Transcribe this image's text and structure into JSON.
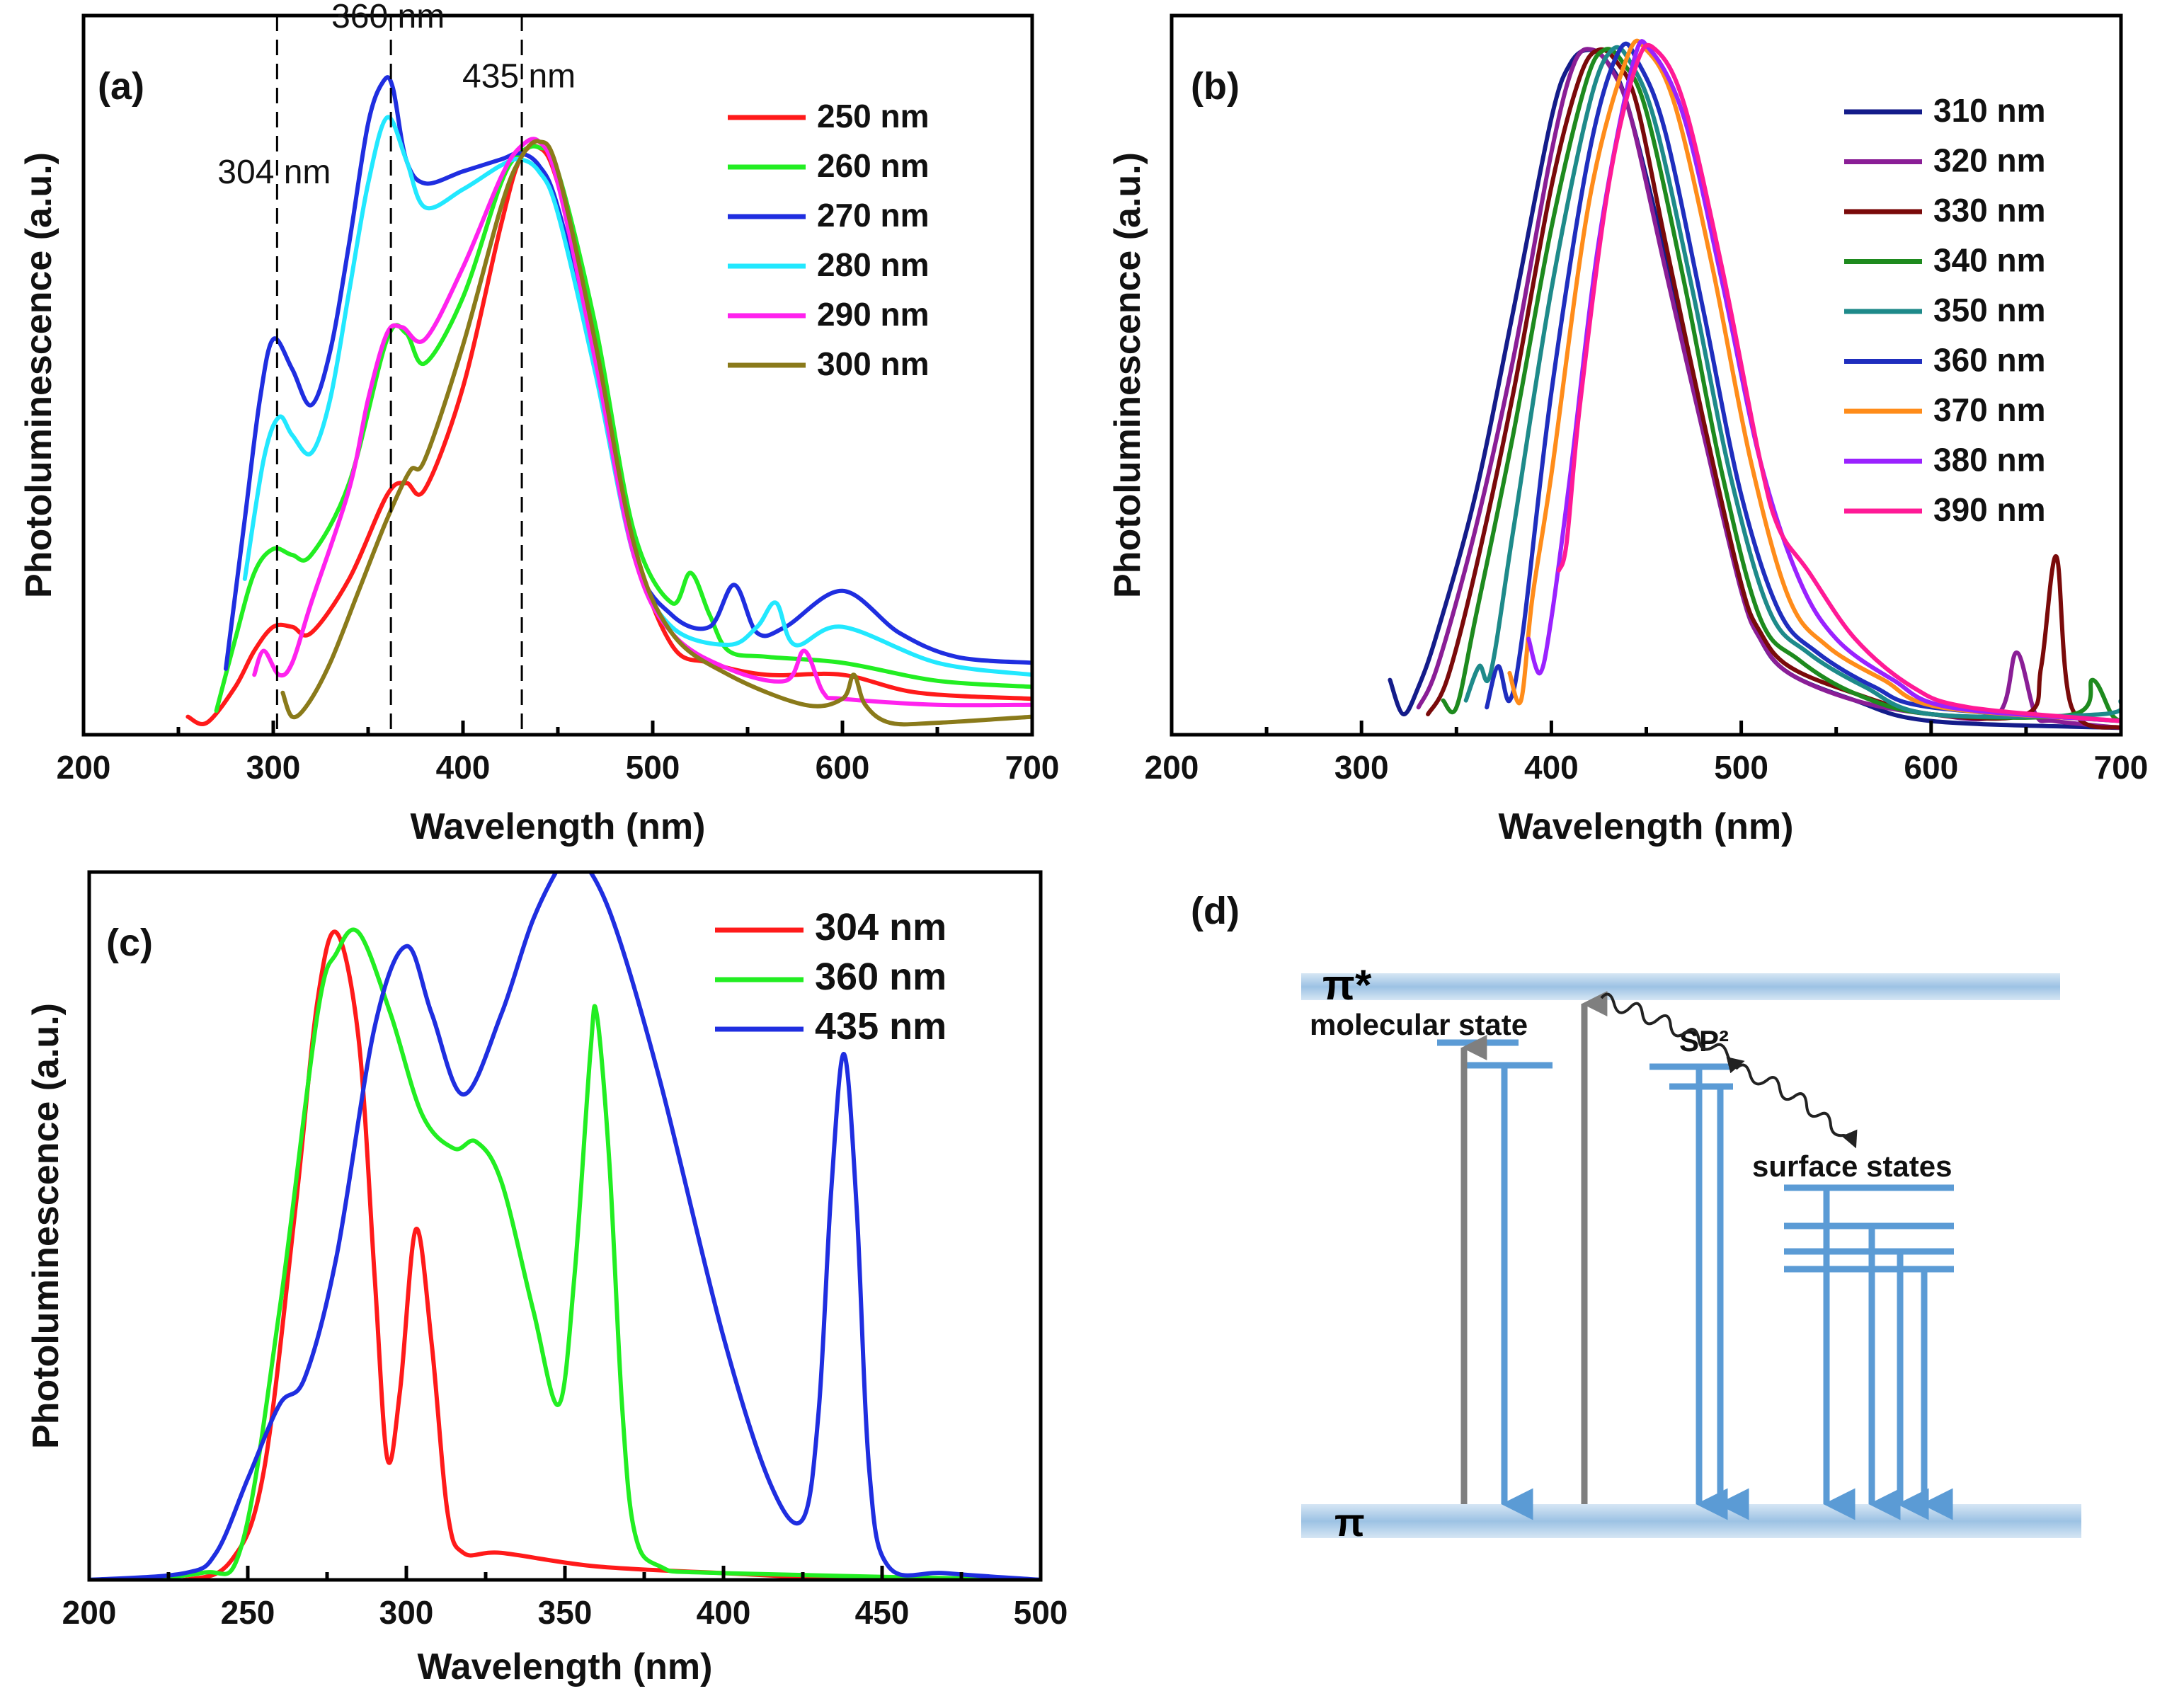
{
  "chart_data": [
    {
      "id": "a",
      "type": "line",
      "panel_label": "(a)",
      "xlabel": "Wavelength (nm)",
      "ylabel": "Photoluminescence (a.u.)",
      "xlim": [
        200,
        700
      ],
      "ylim": [
        0,
        1.2
      ],
      "xticks": [
        200,
        300,
        400,
        500,
        600,
        700
      ],
      "annotations": [
        {
          "text": "304 nm",
          "x": 302,
          "y": 0.92
        },
        {
          "text": "360 nm",
          "x": 362,
          "y": 1.18
        },
        {
          "text": "435 nm",
          "x": 431,
          "y": 1.08
        }
      ],
      "vlines": [
        302,
        362,
        431
      ],
      "series": [
        {
          "name": "250 nm",
          "color": "#ff1a1a",
          "x": [
            255,
            265,
            280,
            290,
            300,
            310,
            320,
            340,
            360,
            370,
            380,
            400,
            420,
            430,
            440,
            450,
            470,
            490,
            510,
            530,
            560,
            600,
            640,
            700
          ],
          "y": [
            0.03,
            0.02,
            0.08,
            0.14,
            0.18,
            0.18,
            0.17,
            0.26,
            0.4,
            0.42,
            0.41,
            0.58,
            0.85,
            0.96,
            0.98,
            0.92,
            0.66,
            0.32,
            0.15,
            0.12,
            0.1,
            0.1,
            0.07,
            0.06
          ]
        },
        {
          "name": "260 nm",
          "color": "#22ee22",
          "x": [
            270,
            280,
            290,
            300,
            310,
            320,
            340,
            360,
            370,
            380,
            400,
            420,
            430,
            440,
            450,
            470,
            490,
            510,
            520,
            530,
            540,
            560,
            600,
            650,
            700
          ],
          "y": [
            0.04,
            0.16,
            0.27,
            0.31,
            0.3,
            0.3,
            0.42,
            0.66,
            0.67,
            0.62,
            0.73,
            0.92,
            0.97,
            0.98,
            0.94,
            0.68,
            0.34,
            0.22,
            0.27,
            0.2,
            0.14,
            0.13,
            0.12,
            0.09,
            0.08
          ]
        },
        {
          "name": "270 nm",
          "color": "#1f2ee0",
          "x": [
            275,
            285,
            293,
            300,
            310,
            320,
            330,
            340,
            350,
            358,
            363,
            370,
            380,
            400,
            420,
            430,
            440,
            450,
            470,
            490,
            510,
            530,
            543,
            555,
            570,
            600,
            630,
            660,
            700
          ],
          "y": [
            0.11,
            0.36,
            0.56,
            0.66,
            0.61,
            0.55,
            0.64,
            0.82,
            1.02,
            1.09,
            1.08,
            0.96,
            0.92,
            0.94,
            0.96,
            0.97,
            0.95,
            0.88,
            0.62,
            0.3,
            0.2,
            0.18,
            0.25,
            0.17,
            0.18,
            0.24,
            0.17,
            0.13,
            0.12
          ]
        },
        {
          "name": "280 nm",
          "color": "#22e8ff",
          "x": [
            285,
            295,
            303,
            310,
            320,
            330,
            340,
            350,
            360,
            370,
            380,
            400,
            420,
            430,
            440,
            450,
            470,
            490,
            510,
            540,
            555,
            565,
            575,
            600,
            650,
            700
          ],
          "y": [
            0.26,
            0.46,
            0.53,
            0.5,
            0.47,
            0.56,
            0.74,
            0.92,
            1.03,
            0.96,
            0.88,
            0.91,
            0.95,
            0.96,
            0.94,
            0.87,
            0.6,
            0.3,
            0.18,
            0.15,
            0.18,
            0.22,
            0.15,
            0.18,
            0.12,
            0.1
          ]
        },
        {
          "name": "290 nm",
          "color": "#ff22ee",
          "x": [
            290,
            295,
            303,
            310,
            320,
            340,
            350,
            360,
            368,
            380,
            400,
            420,
            430,
            440,
            450,
            470,
            490,
            510,
            540,
            570,
            580,
            590,
            600,
            650,
            700
          ],
          "y": [
            0.1,
            0.14,
            0.1,
            0.12,
            0.22,
            0.41,
            0.56,
            0.67,
            0.68,
            0.66,
            0.78,
            0.93,
            0.98,
            0.99,
            0.92,
            0.62,
            0.3,
            0.17,
            0.11,
            0.09,
            0.14,
            0.07,
            0.06,
            0.05,
            0.05
          ]
        },
        {
          "name": "300 nm",
          "color": "#8a7a1a",
          "x": [
            305,
            310,
            318,
            330,
            345,
            360,
            372,
            380,
            400,
            420,
            430,
            440,
            450,
            470,
            490,
            510,
            540,
            580,
            600,
            606,
            612,
            625,
            650,
            700
          ],
          "y": [
            0.07,
            0.03,
            0.05,
            0.12,
            0.24,
            0.36,
            0.44,
            0.46,
            0.65,
            0.88,
            0.96,
            0.99,
            0.94,
            0.65,
            0.32,
            0.17,
            0.1,
            0.05,
            0.06,
            0.1,
            0.05,
            0.02,
            0.02,
            0.03
          ]
        }
      ]
    },
    {
      "id": "b",
      "type": "line",
      "panel_label": "(b)",
      "xlabel": "Wavelength (nm)",
      "ylabel": "Photoluminescence (a.u.)",
      "xlim": [
        200,
        700
      ],
      "ylim": [
        0,
        1.05
      ],
      "xticks": [
        200,
        300,
        400,
        500,
        600,
        700
      ],
      "series": [
        {
          "name": "310 nm",
          "color": "#141c8a",
          "x": [
            315,
            322,
            330,
            340,
            360,
            380,
            400,
            410,
            420,
            430,
            440,
            460,
            480,
            500,
            510,
            525,
            560,
            600,
            700
          ],
          "y": [
            0.08,
            0.03,
            0.07,
            0.15,
            0.35,
            0.62,
            0.9,
            0.98,
            1.0,
            0.98,
            0.92,
            0.7,
            0.45,
            0.22,
            0.14,
            0.09,
            0.05,
            0.02,
            0.01
          ]
        },
        {
          "name": "320 nm",
          "color": "#8a1e96",
          "x": [
            330,
            340,
            360,
            380,
            400,
            412,
            422,
            432,
            442,
            460,
            480,
            500,
            510,
            525,
            560,
            600,
            635,
            645,
            655,
            665,
            700
          ],
          "y": [
            0.04,
            0.1,
            0.3,
            0.55,
            0.85,
            0.98,
            1.0,
            0.97,
            0.9,
            0.68,
            0.44,
            0.21,
            0.14,
            0.09,
            0.05,
            0.03,
            0.03,
            0.12,
            0.03,
            0.02,
            0.01
          ]
        },
        {
          "name": "330 nm",
          "color": "#7a0a0a",
          "x": [
            335,
            345,
            360,
            380,
            400,
            415,
            425,
            435,
            445,
            460,
            480,
            500,
            510,
            525,
            560,
            600,
            650,
            658,
            666,
            674,
            700
          ],
          "y": [
            0.03,
            0.08,
            0.24,
            0.5,
            0.8,
            0.96,
            1.0,
            0.98,
            0.92,
            0.72,
            0.46,
            0.22,
            0.15,
            0.1,
            0.06,
            0.03,
            0.03,
            0.1,
            0.26,
            0.04,
            0.01
          ]
        },
        {
          "name": "340 nm",
          "color": "#1e8a1e",
          "x": [
            343,
            350,
            360,
            380,
            400,
            418,
            428,
            438,
            450,
            470,
            490,
            510,
            530,
            560,
            600,
            675,
            685,
            695,
            700
          ],
          "y": [
            0.05,
            0.04,
            0.17,
            0.44,
            0.74,
            0.95,
            1.0,
            0.98,
            0.91,
            0.66,
            0.38,
            0.17,
            0.11,
            0.06,
            0.03,
            0.03,
            0.08,
            0.03,
            0.02
          ]
        },
        {
          "name": "350 nm",
          "color": "#1e8a8a",
          "x": [
            355,
            362,
            368,
            380,
            400,
            420,
            432,
            442,
            455,
            475,
            495,
            515,
            535,
            565,
            600,
            690,
            700
          ],
          "y": [
            0.05,
            0.1,
            0.09,
            0.3,
            0.65,
            0.92,
            1.0,
            0.98,
            0.89,
            0.64,
            0.37,
            0.18,
            0.12,
            0.07,
            0.03,
            0.03,
            0.05
          ]
        },
        {
          "name": "360 nm",
          "color": "#1f2ebe",
          "x": [
            366,
            372,
            378,
            385,
            400,
            420,
            436,
            446,
            460,
            480,
            500,
            520,
            540,
            570,
            600,
            700
          ],
          "y": [
            0.04,
            0.1,
            0.05,
            0.15,
            0.5,
            0.85,
            1.0,
            0.98,
            0.88,
            0.62,
            0.35,
            0.18,
            0.12,
            0.07,
            0.04,
            0.02
          ]
        },
        {
          "name": "370 nm",
          "color": "#ff8c1a",
          "x": [
            378,
            384,
            390,
            400,
            420,
            440,
            450,
            465,
            485,
            505,
            525,
            545,
            575,
            605,
            700
          ],
          "y": [
            0.09,
            0.05,
            0.2,
            0.38,
            0.78,
            0.99,
            1.0,
            0.92,
            0.68,
            0.4,
            0.2,
            0.13,
            0.08,
            0.04,
            0.02
          ]
        },
        {
          "name": "380 nm",
          "color": "#9a22ff",
          "x": [
            388,
            394,
            400,
            410,
            425,
            443,
            452,
            470,
            490,
            510,
            530,
            550,
            580,
            610,
            700
          ],
          "y": [
            0.14,
            0.09,
            0.17,
            0.38,
            0.72,
            0.98,
            1.0,
            0.9,
            0.66,
            0.4,
            0.23,
            0.14,
            0.08,
            0.04,
            0.02
          ]
        },
        {
          "name": "390 nm",
          "color": "#ff1a96",
          "x": [
            404,
            408,
            415,
            430,
            445,
            455,
            470,
            490,
            510,
            520,
            535,
            560,
            590,
            620,
            700
          ],
          "y": [
            0.24,
            0.28,
            0.48,
            0.8,
            0.98,
            1.0,
            0.92,
            0.68,
            0.4,
            0.3,
            0.24,
            0.14,
            0.07,
            0.04,
            0.02
          ]
        }
      ]
    },
    {
      "id": "c",
      "type": "line",
      "panel_label": "(c)",
      "xlabel": "Wavelength (nm)",
      "ylabel": "Photoluminescence (a.u.)",
      "xlim": [
        200,
        500
      ],
      "ylim": [
        0,
        1.05
      ],
      "xticks": [
        200,
        250,
        300,
        350,
        400,
        450,
        500
      ],
      "series": [
        {
          "name": "304 nm",
          "color": "#ff1a1a",
          "x": [
            200,
            230,
            245,
            255,
            265,
            272,
            278,
            285,
            290,
            294,
            298,
            303,
            308,
            313,
            318,
            330,
            360,
            400,
            450,
            500
          ],
          "y": [
            0.0,
            0.0,
            0.03,
            0.16,
            0.55,
            0.86,
            0.96,
            0.8,
            0.45,
            0.18,
            0.28,
            0.52,
            0.35,
            0.1,
            0.04,
            0.04,
            0.02,
            0.01,
            0.0,
            0.0
          ]
        },
        {
          "name": "360 nm",
          "color": "#22ee22",
          "x": [
            200,
            235,
            248,
            260,
            272,
            278,
            285,
            295,
            305,
            315,
            322,
            330,
            340,
            348,
            353,
            358,
            360,
            364,
            368,
            372,
            380,
            400,
            500
          ],
          "y": [
            0.0,
            0.01,
            0.05,
            0.4,
            0.84,
            0.93,
            0.96,
            0.84,
            0.69,
            0.64,
            0.65,
            0.59,
            0.4,
            0.26,
            0.45,
            0.78,
            0.84,
            0.62,
            0.26,
            0.07,
            0.02,
            0.01,
            0.0
          ]
        },
        {
          "name": "435 nm",
          "color": "#1f2ee0",
          "x": [
            200,
            230,
            240,
            250,
            260,
            268,
            278,
            290,
            300,
            308,
            318,
            330,
            340,
            350,
            355,
            365,
            380,
            400,
            415,
            425,
            430,
            434,
            438,
            442,
            446,
            452,
            470,
            500
          ],
          "y": [
            0.0,
            0.01,
            0.04,
            0.15,
            0.26,
            0.3,
            0.48,
            0.82,
            0.94,
            0.84,
            0.72,
            0.84,
            0.98,
            1.07,
            1.07,
            0.98,
            0.74,
            0.36,
            0.14,
            0.09,
            0.25,
            0.58,
            0.78,
            0.55,
            0.16,
            0.02,
            0.01,
            0.0
          ]
        }
      ]
    }
  ],
  "diagram": {
    "panel_label": "(d)",
    "pi_star_label": "π*",
    "pi_label": "π",
    "molecular_state_label": "molecular state",
    "sp2_label": "SP²",
    "surface_states_label": "surface states",
    "colors": {
      "band": "#a9c8e6",
      "level": "#5b9bd5",
      "arrow": "#5b9bd5",
      "excite": "#7f7f7f",
      "wavy": "#222222"
    }
  }
}
